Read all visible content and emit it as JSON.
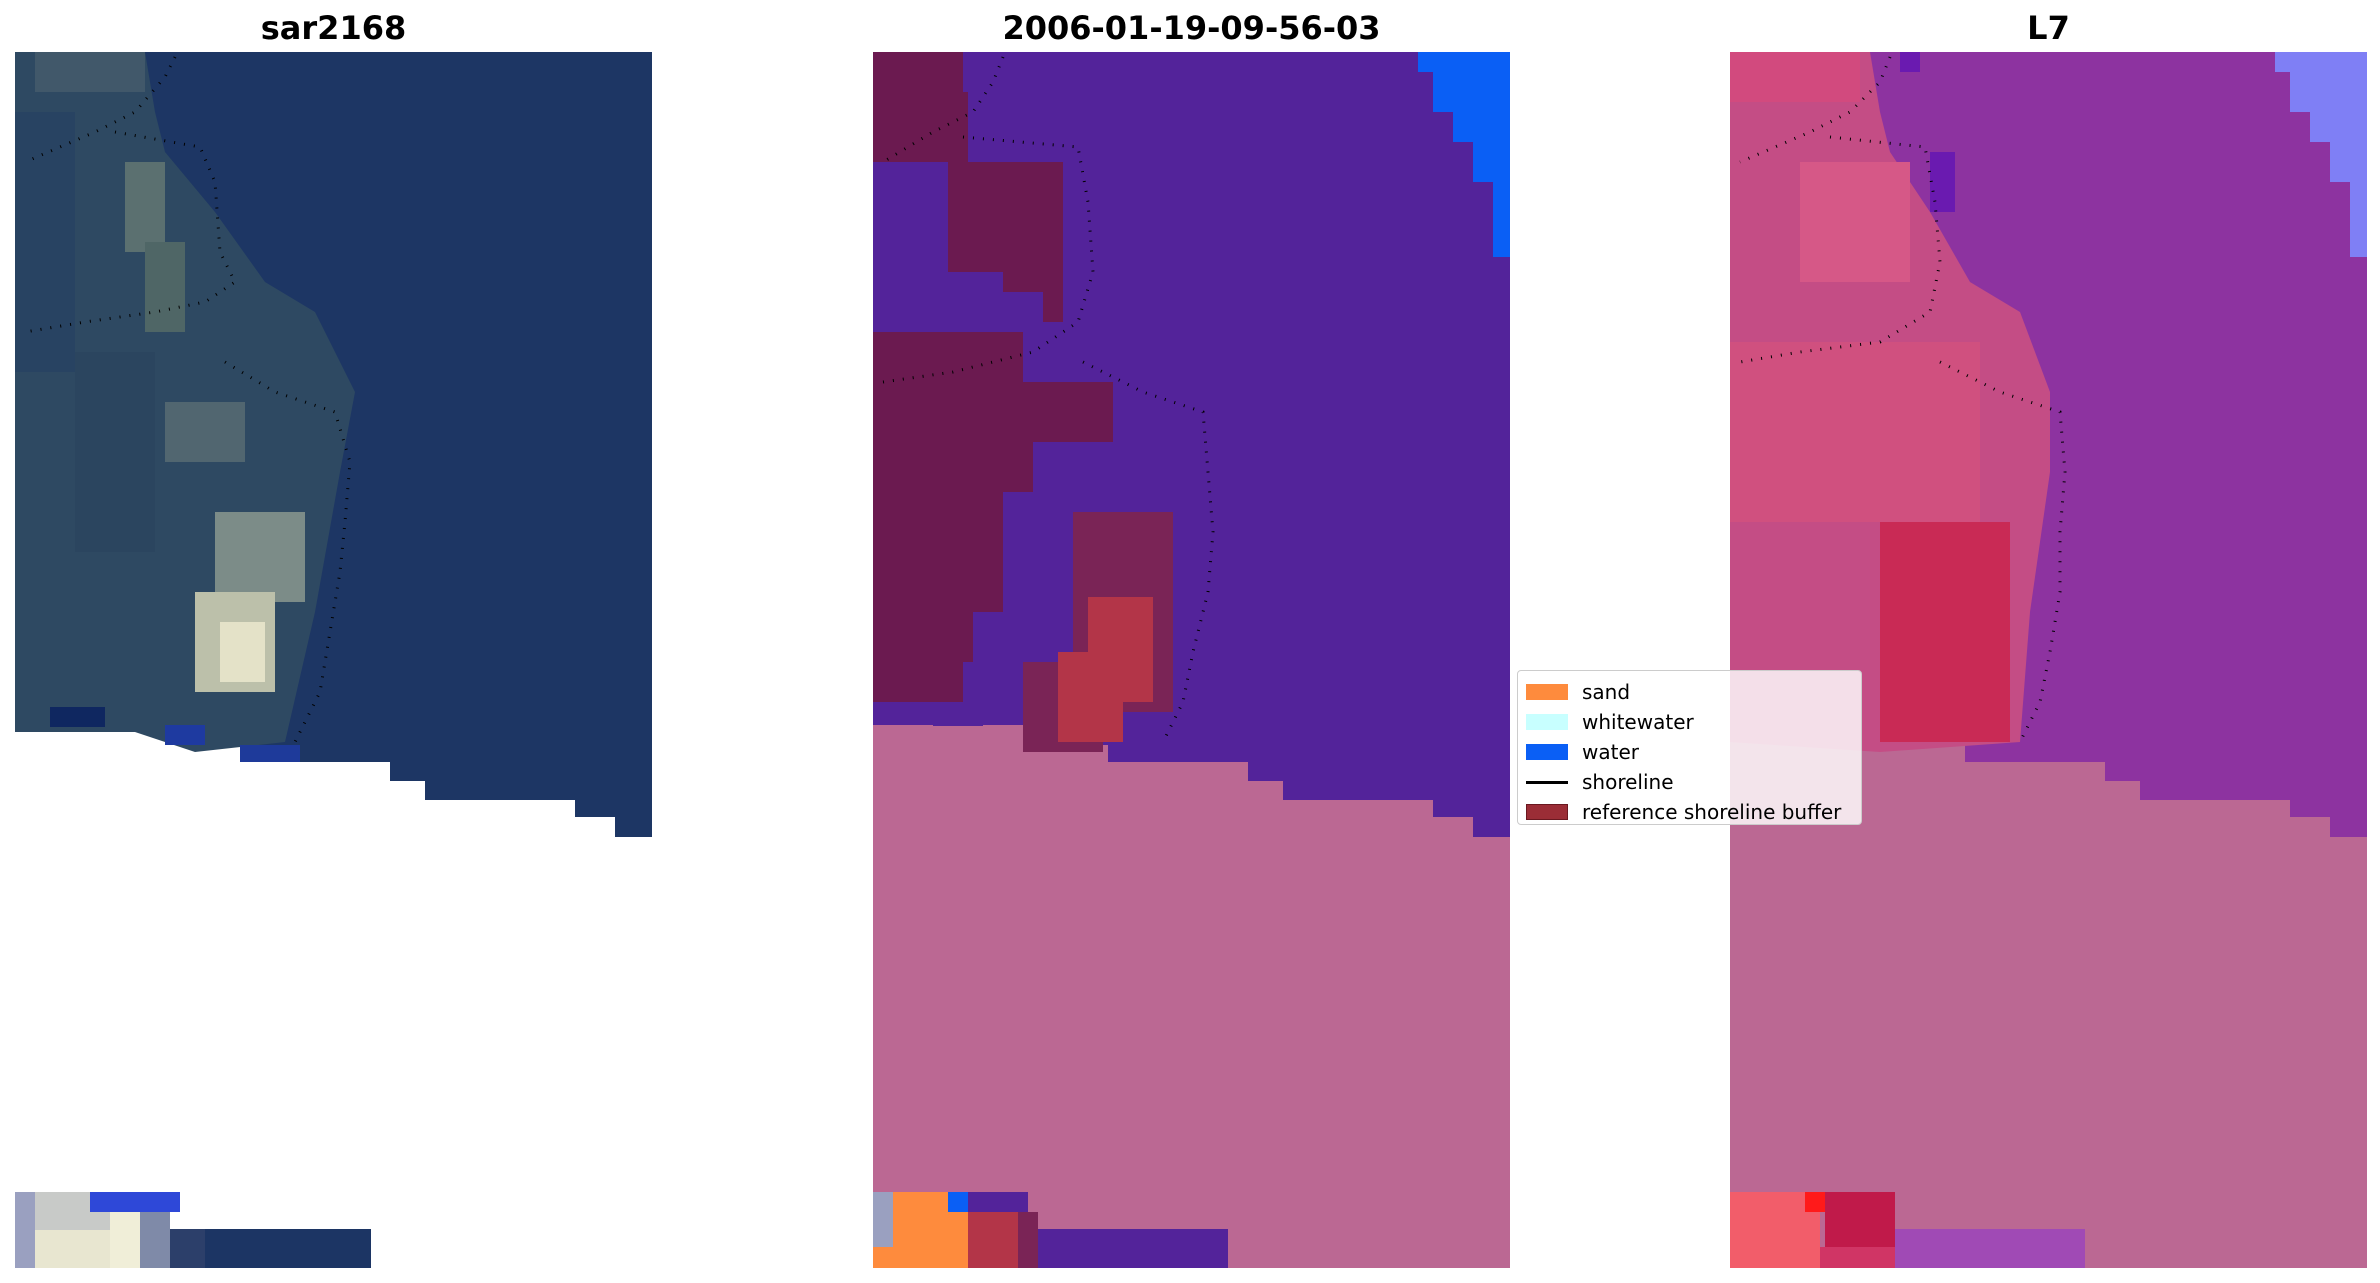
{
  "panels": [
    {
      "title": "sar2168"
    },
    {
      "title": "2006-01-19-09-56-03"
    },
    {
      "title": "L7"
    }
  ],
  "legend": {
    "items": [
      {
        "label": "sand",
        "kind": "patch",
        "color": "#fe8b3d"
      },
      {
        "label": "whitewater",
        "kind": "patch",
        "color": "#c8ffff"
      },
      {
        "label": "water",
        "kind": "patch",
        "color": "#0a5ff5"
      },
      {
        "label": "shoreline",
        "kind": "line",
        "color": "#000000"
      },
      {
        "label": "reference shoreline buffer",
        "kind": "patch",
        "color": "#9b2d36"
      }
    ]
  },
  "colors": {
    "rgb_water": "#1b3563",
    "rgb_land": "#2f4e63",
    "rgb_sand": "#c8c8a8",
    "class_water": "#53239a",
    "class_land": "#6b1a50",
    "class_buffer": "#b33548",
    "class_nodata": "#bb6893",
    "class_ocean": "#0a5ff5",
    "mndwi_water": "#8d33a0",
    "mndwi_land": "#cf4f84",
    "mndwi_wet": "#c01a4a",
    "mndwi_ocean": "#7f7ff5",
    "mndwi_nodata": "#bb6893"
  }
}
